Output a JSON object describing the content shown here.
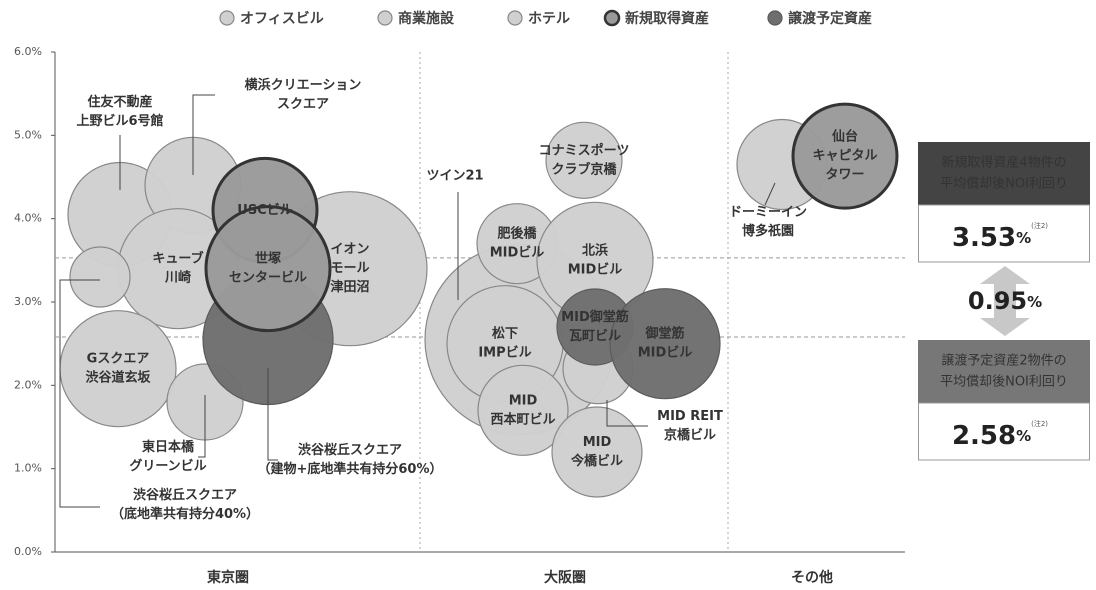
{
  "chart_data": {
    "type": "bubble",
    "legend": [
      {
        "name": "オフィスビル",
        "color": "#d0d0d0",
        "border": "#888888"
      },
      {
        "name": "商業施設",
        "color": "#d0d0d0",
        "border": "#888888"
      },
      {
        "name": "ホテル",
        "color": "#d0d0d0",
        "border": "#888888"
      },
      {
        "name": "新規取得資産",
        "color": "#9a9a9a",
        "border": "#333333"
      },
      {
        "name": "譲渡予定資産",
        "color": "#6e6e6e",
        "border": "#5a5a5a"
      }
    ],
    "categories": [
      "東京圏",
      "大阪圏",
      "その他"
    ],
    "ylim": [
      0,
      6
    ],
    "yticks": [
      {
        "value": 0,
        "label": "0.0%"
      },
      {
        "value": 1,
        "label": "1.0%"
      },
      {
        "value": 2,
        "label": "2.0%"
      },
      {
        "value": 3,
        "label": "3.0%"
      },
      {
        "value": 4,
        "label": "4.0%"
      },
      {
        "value": 5,
        "label": "5.0%"
      },
      {
        "value": 6,
        "label": "6.0%"
      }
    ],
    "bubbles": [
      {
        "label": [
          "住友不動産",
          "上野ビル6号館"
        ],
        "region": 0,
        "kind": 0,
        "y": 4.05,
        "size": 52
      },
      {
        "label": [
          "横浜クリエーション",
          "スクエア"
        ],
        "region": 0,
        "kind": 0,
        "y": 4.4,
        "size": 48
      },
      {
        "label": [
          "イオン",
          "モール",
          "津田沼"
        ],
        "region": 0,
        "kind": 1,
        "y": 3.4,
        "size": 77
      },
      {
        "label": [
          "キューブ",
          "川崎"
        ],
        "region": 0,
        "kind": 0,
        "y": 3.4,
        "size": 60
      },
      {
        "label": [
          "渋谷桜丘スクエア",
          "（底地準共有持分40%）"
        ],
        "region": 0,
        "kind": 0,
        "y": 3.3,
        "size": 30
      },
      {
        "label": [
          "Gスクエア",
          "渋谷道玄坂"
        ],
        "region": 0,
        "kind": 0,
        "y": 2.2,
        "size": 58
      },
      {
        "label": [
          "東日本橋",
          "グリーンビル"
        ],
        "region": 0,
        "kind": 0,
        "y": 1.8,
        "size": 38
      },
      {
        "label": [
          "渋谷桜丘スクエア",
          "（建物+底地準共有持分60%）"
        ],
        "region": 0,
        "kind": 4,
        "y": 2.55,
        "size": 65
      },
      {
        "label": [
          "USCビル"
        ],
        "region": 0,
        "kind": 3,
        "y": 4.1,
        "size": 52
      },
      {
        "label": [
          "世塚",
          "センタービル"
        ],
        "region": 0,
        "kind": 3,
        "y": 3.4,
        "size": 62
      },
      {
        "label": [
          "ツイン21"
        ],
        "region": 1,
        "kind": 0,
        "y": 2.55,
        "size": 95
      },
      {
        "label": [
          "コナミスポーツ",
          "クラブ京橋"
        ],
        "region": 1,
        "kind": 1,
        "y": 4.7,
        "size": 38
      },
      {
        "label": [
          "肥後橋",
          "MIDビル"
        ],
        "region": 1,
        "kind": 0,
        "y": 3.7,
        "size": 40
      },
      {
        "label": [
          "北浜",
          "MIDビル"
        ],
        "region": 1,
        "kind": 0,
        "y": 3.5,
        "size": 58
      },
      {
        "label": [
          "松下",
          "IMPビル"
        ],
        "region": 1,
        "kind": 0,
        "y": 2.5,
        "size": 58
      },
      {
        "label": [
          "MID REIT",
          "京橋ビル"
        ],
        "region": 1,
        "kind": 0,
        "y": 2.2,
        "size": 35
      },
      {
        "label": [
          "MID",
          "西本町ビル"
        ],
        "region": 1,
        "kind": 0,
        "y": 1.7,
        "size": 45
      },
      {
        "label": [
          "MID",
          "今橋ビル"
        ],
        "region": 1,
        "kind": 0,
        "y": 1.2,
        "size": 45
      },
      {
        "label": [
          "MID御堂筋",
          "瓦町ビル"
        ],
        "region": 1,
        "kind": 4,
        "y": 2.7,
        "size": 38
      },
      {
        "label": [
          "御堂筋",
          "MIDビル"
        ],
        "region": 1,
        "kind": 4,
        "y": 2.5,
        "size": 55
      },
      {
        "label": [
          "ドーミーイン",
          "博多祇園"
        ],
        "region": 2,
        "kind": 2,
        "y": 4.65,
        "size": 45
      },
      {
        "label": [
          "仙台",
          "キャピタル",
          "タワー"
        ],
        "region": 2,
        "kind": 3,
        "y": 4.75,
        "size": 52
      }
    ],
    "highlights": [
      {
        "title": [
          "新規取得資産4物件の",
          "平均償却後NOI利回り"
        ],
        "value": 3.53,
        "unit": "%",
        "note": "(注2)"
      },
      {
        "title": [
          "譲渡予定資産2物件の",
          "平均償却後NOI利回り"
        ],
        "value": 2.58,
        "unit": "%",
        "note": "(注2)"
      }
    ],
    "difference": {
      "value": 0.95,
      "unit": "%"
    }
  }
}
